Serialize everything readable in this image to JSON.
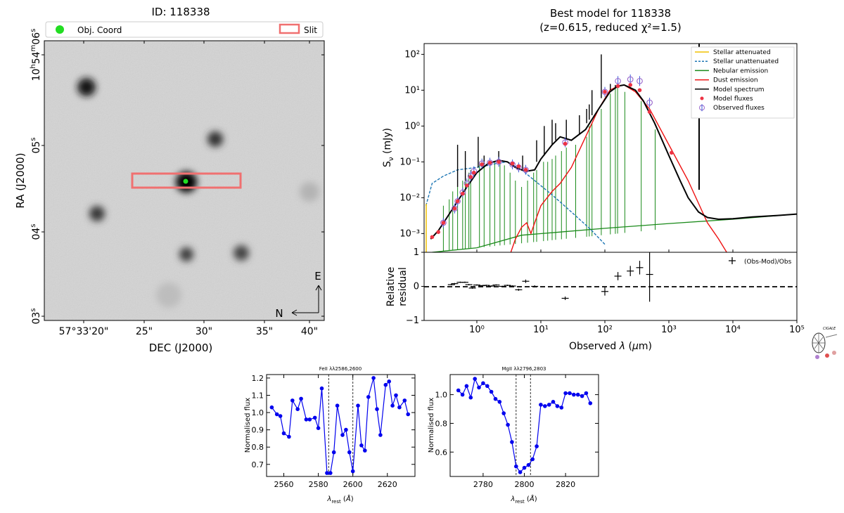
{
  "image_panel": {
    "title": "ID: 118338",
    "legend_obj": "Obj. Coord",
    "legend_slit": "Slit",
    "xlabel": "DEC (J2000)",
    "ylabel": "RA (J2000)",
    "xticks": [
      "57°33'20\"",
      "25\"",
      "30\"",
      "35\"",
      "40\""
    ],
    "yticks": [
      {
        "base": "10",
        "sup1": "h",
        "mid": "54",
        "sup2": "m",
        "sec": "06",
        "sup3": "s"
      },
      {
        "base": "05",
        "sup1": "s"
      },
      {
        "base": "04",
        "sup1": "s"
      },
      {
        "base": "03",
        "sup1": "s"
      }
    ],
    "compass_e": "E",
    "compass_n": "N",
    "colors": {
      "obj": "#22dd22",
      "slit": "#f07070"
    }
  },
  "chart_data": [
    {
      "type": "line",
      "title": "Best model for 118338",
      "subtitle": "(z=0.615, reduced χ²=1.5)",
      "xlabel": "Observed λ (μm)",
      "ylabel": "S_ν (mJy)",
      "xscale": "log",
      "yscale": "log",
      "xlim": [
        0.15,
        100000
      ],
      "ylim": [
        0.0003,
        200
      ],
      "xticks": [
        "10⁰",
        "10¹",
        "10²",
        "10³",
        "10⁴",
        "10⁵"
      ],
      "yticks": [
        "10²",
        "10¹",
        "10⁰",
        "10⁻¹",
        "10⁻²",
        "10⁻³"
      ],
      "legend_position": "top-right",
      "legend": [
        {
          "label": "Stellar attenuated",
          "color": "#f0c000",
          "style": "solid"
        },
        {
          "label": "Stellar unattenuated",
          "color": "#1f77b4",
          "style": "dashed"
        },
        {
          "label": "Nebular emission",
          "color": "#1a8a1a",
          "style": "solid"
        },
        {
          "label": "Dust emission",
          "color": "#ee1111",
          "style": "solid"
        },
        {
          "label": "Model spectrum",
          "color": "#000000",
          "style": "solid"
        },
        {
          "label": "Model fluxes",
          "color": "#ee3344",
          "style": "dot"
        },
        {
          "label": "Observed fluxes",
          "color": "#9966cc",
          "style": "circle"
        }
      ],
      "series": [
        {
          "name": "Model spectrum",
          "x": [
            0.19,
            0.25,
            0.35,
            0.5,
            0.7,
            1.0,
            1.5,
            2.2,
            3.0,
            4.0,
            5.0,
            6.0,
            8.0,
            10,
            15,
            20,
            30,
            50,
            80,
            120,
            160,
            200,
            300,
            400,
            600,
            1000,
            1500,
            2000,
            2900,
            4000,
            6000,
            10000,
            20000,
            50000,
            100000
          ],
          "y": [
            0.0007,
            0.0012,
            0.003,
            0.008,
            0.02,
            0.05,
            0.09,
            0.11,
            0.1,
            0.07,
            0.06,
            0.055,
            0.06,
            0.12,
            0.3,
            0.5,
            0.4,
            0.8,
            3,
            9,
            13,
            14,
            10,
            5,
            1.2,
            0.15,
            0.03,
            0.01,
            0.004,
            0.0028,
            0.0025,
            0.0026,
            0.0029,
            0.0032,
            0.0035
          ]
        },
        {
          "name": "Stellar unattenuated",
          "x": [
            0.16,
            0.2,
            0.3,
            0.5,
            1.0,
            1.5,
            2.0,
            3.0,
            5.0,
            8.0,
            15,
            30,
            60,
            100
          ],
          "y": [
            0.006,
            0.025,
            0.04,
            0.06,
            0.07,
            0.08,
            0.09,
            0.1,
            0.06,
            0.03,
            0.012,
            0.004,
            0.0013,
            0.0005
          ]
        },
        {
          "name": "Dust emission",
          "x": [
            3.4,
            4.0,
            5.0,
            6.0,
            7.0,
            8.0,
            10,
            15,
            20,
            30,
            50,
            80,
            120,
            160,
            200,
            300,
            500,
            1000,
            2000,
            4000,
            6000,
            8000
          ],
          "y": [
            0.0003,
            0.0007,
            0.0015,
            0.002,
            0.001,
            0.002,
            0.006,
            0.015,
            0.025,
            0.07,
            0.5,
            3,
            10,
            13,
            14,
            9,
            3,
            0.3,
            0.03,
            0.002,
            0.0007,
            0.0003
          ]
        },
        {
          "name": "Nebular emission continuum",
          "x": [
            0.2,
            1.0,
            5.0,
            20,
            100,
            1000,
            10000,
            100000
          ],
          "y": [
            0.0003,
            0.0004,
            0.0009,
            0.0011,
            0.0014,
            0.0019,
            0.0025,
            0.0035
          ]
        }
      ],
      "observed_fluxes": {
        "x": [
          0.3,
          0.45,
          0.5,
          0.6,
          0.7,
          0.8,
          0.9,
          1.2,
          1.6,
          2.2,
          3.6,
          4.5,
          5.8,
          24,
          100,
          160,
          250,
          350,
          500
        ],
        "y": [
          0.002,
          0.005,
          0.008,
          0.014,
          0.025,
          0.04,
          0.055,
          0.09,
          0.095,
          0.1,
          0.085,
          0.07,
          0.06,
          0.35,
          9,
          18,
          20,
          18,
          4.5
        ]
      },
      "model_fluxes": {
        "x": [
          0.2,
          0.25,
          0.3,
          0.45,
          0.5,
          0.6,
          0.7,
          0.8,
          0.9,
          1.2,
          1.6,
          2.2,
          3.6,
          4.5,
          5.8,
          24,
          100,
          160,
          250,
          350,
          500,
          1100
        ],
        "y": [
          0.0008,
          0.0011,
          0.002,
          0.005,
          0.008,
          0.013,
          0.022,
          0.038,
          0.05,
          0.085,
          0.095,
          0.1,
          0.09,
          0.075,
          0.06,
          0.32,
          9,
          13,
          14,
          10,
          2.5,
          0.18
        ]
      }
    },
    {
      "type": "scatter",
      "xlabel": "Observed λ (μm)",
      "ylabel": "Relative residual",
      "xscale": "log",
      "xlim": [
        0.15,
        100000
      ],
      "ylim": [
        -1,
        1
      ],
      "yticks": [
        "1",
        "0",
        "−1"
      ],
      "xticks": [
        "10⁰",
        "10¹",
        "10²",
        "10³",
        "10⁴",
        "10⁵"
      ],
      "legend": "(Obs-Mod)/Obs",
      "x": [
        0.4,
        0.45,
        0.55,
        0.65,
        0.75,
        0.85,
        1.0,
        1.2,
        1.4,
        1.7,
        2.0,
        2.5,
        3.0,
        3.6,
        4.5,
        5.8,
        8.0,
        24,
        100,
        160,
        250,
        350,
        500
      ],
      "y": [
        0.05,
        0.08,
        0.12,
        0.12,
        0.05,
        -0.05,
        0.04,
        0.02,
        0.03,
        0.01,
        0.04,
        0.0,
        0.03,
        0.01,
        -0.1,
        0.15,
        0.0,
        -0.35,
        -0.15,
        0.3,
        0.45,
        0.55,
        0.35
      ],
      "yerr": [
        0.02,
        0.02,
        0.02,
        0.02,
        0.02,
        0.02,
        0.02,
        0.02,
        0.02,
        0.02,
        0.02,
        0.02,
        0.02,
        0.02,
        0.03,
        0.05,
        0.03,
        0.05,
        0.12,
        0.12,
        0.15,
        0.2,
        0.8
      ]
    },
    {
      "type": "line",
      "title": "FeII λλ2586,2600",
      "xlabel": "λ_rest (Å)",
      "ylabel": "Normalised flux",
      "xlim": [
        2550,
        2636
      ],
      "ylim": [
        0.63,
        1.22
      ],
      "xticks": [
        2560,
        2580,
        2600,
        2620
      ],
      "yticks": [
        0.7,
        0.8,
        0.9,
        1.0,
        1.1,
        1.2
      ],
      "vlines": [
        2586,
        2600
      ],
      "color": "#0000ee",
      "x": [
        2553,
        2556,
        2558,
        2560,
        2563,
        2565,
        2568,
        2570,
        2573,
        2575,
        2578,
        2580,
        2582,
        2585,
        2587,
        2589,
        2591,
        2594,
        2596,
        2598,
        2600,
        2603,
        2605,
        2607,
        2609,
        2612,
        2614,
        2616,
        2619,
        2621,
        2623,
        2625,
        2627,
        2630,
        2632
      ],
      "y": [
        1.03,
        0.99,
        0.98,
        0.88,
        0.86,
        1.07,
        1.02,
        1.08,
        0.96,
        0.96,
        0.97,
        0.91,
        1.14,
        0.65,
        0.65,
        0.77,
        1.04,
        0.87,
        0.9,
        0.77,
        0.66,
        1.04,
        0.81,
        0.78,
        1.09,
        1.2,
        1.02,
        0.87,
        1.16,
        1.18,
        1.04,
        1.1,
        1.03,
        1.07,
        0.99
      ]
    },
    {
      "type": "line",
      "title": "MgII λλ2796,2803",
      "xlabel": "λ_rest (Å)",
      "ylabel": "Normalised flux",
      "xlim": [
        2764,
        2836
      ],
      "ylim": [
        0.43,
        1.14
      ],
      "xticks": [
        2780,
        2800,
        2820
      ],
      "yticks": [
        0.6,
        0.8,
        1.0
      ],
      "vlines": [
        2796,
        2803
      ],
      "color": "#0000ee",
      "x": [
        2768,
        2770,
        2772,
        2774,
        2776,
        2778,
        2780,
        2782,
        2784,
        2786,
        2788,
        2790,
        2792,
        2794,
        2796,
        2798,
        2800,
        2802,
        2804,
        2806,
        2808,
        2810,
        2812,
        2814,
        2816,
        2818,
        2820,
        2822,
        2824,
        2826,
        2828,
        2830,
        2832
      ],
      "y": [
        1.03,
        1.0,
        1.06,
        0.98,
        1.11,
        1.05,
        1.08,
        1.06,
        1.02,
        0.97,
        0.95,
        0.87,
        0.79,
        0.67,
        0.5,
        0.46,
        0.49,
        0.51,
        0.55,
        0.64,
        0.93,
        0.92,
        0.93,
        0.95,
        0.92,
        0.91,
        1.01,
        1.01,
        1.0,
        1.0,
        0.99,
        1.01,
        0.94
      ]
    }
  ]
}
